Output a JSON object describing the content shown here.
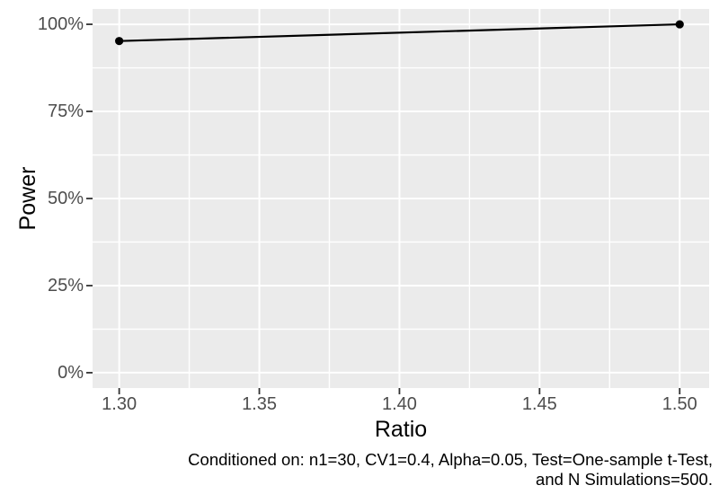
{
  "chart_data": {
    "type": "line",
    "title": "",
    "xlabel": "Ratio",
    "ylabel": "Power",
    "series": [
      {
        "name": "Power",
        "x": [
          1.3,
          1.5
        ],
        "y": [
          0.952,
          1.0
        ]
      }
    ],
    "xlim": [
      1.2905,
      1.5105
    ],
    "ylim": [
      -0.044,
      1.044
    ],
    "x_ticks": {
      "values": [
        1.3,
        1.35,
        1.4,
        1.45,
        1.5
      ],
      "labels": [
        "1.30",
        "1.35",
        "1.40",
        "1.45",
        "1.50"
      ]
    },
    "y_ticks": {
      "values": [
        0,
        0.25,
        0.5,
        0.75,
        1.0
      ],
      "labels": [
        "0%",
        "25%",
        "50%",
        "75%",
        "100%"
      ]
    },
    "x_minor_ticks": [
      1.325,
      1.375,
      1.425,
      1.475
    ],
    "y_minor_ticks": [
      0.125,
      0.375,
      0.625,
      0.875
    ],
    "grid": "major-and-minor",
    "legend": "none",
    "point_shape": "filled-circle"
  },
  "caption": {
    "line1": "Conditioned on: n1=30, CV1=0.4, Alpha=0.05, Test=One-sample t-Test,",
    "line2": "and N Simulations=500."
  },
  "colors": {
    "page_background": "#ffffff",
    "panel_background": "#ebebeb",
    "gridline": "#ffffff",
    "line": "#000000",
    "point": "#000000",
    "tick_mark": "#333333",
    "tick_label": "#4d4d4d",
    "axis_title": "#000000",
    "caption_text": "#000000"
  }
}
